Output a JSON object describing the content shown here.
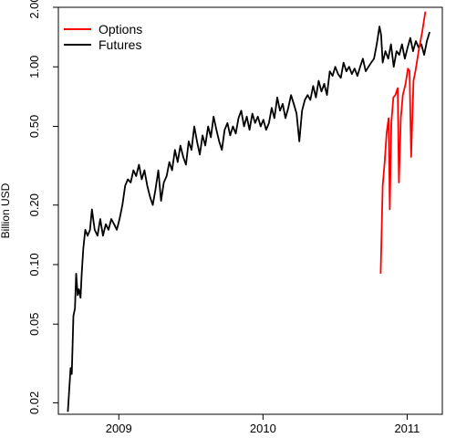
{
  "chart_data": {
    "type": "line",
    "title": "",
    "xlabel": "",
    "ylabel": "Billion USD",
    "x_scale": "time",
    "y_scale": "log",
    "xlim": [
      "2008-08-01",
      "2011-03-31"
    ],
    "ylim": [
      0.0175,
      2.0
    ],
    "x_ticks": [
      {
        "date": "2009-01-01",
        "label": "2009"
      },
      {
        "date": "2010-01-01",
        "label": "2010"
      },
      {
        "date": "2011-01-01",
        "label": "2011"
      }
    ],
    "y_ticks": [
      {
        "value": 0.02,
        "label": "0.02"
      },
      {
        "value": 0.05,
        "label": "0.05"
      },
      {
        "value": 0.1,
        "label": "0.10"
      },
      {
        "value": 0.2,
        "label": "0.20"
      },
      {
        "value": 0.5,
        "label": "0.50"
      },
      {
        "value": 1.0,
        "label": "1.00"
      },
      {
        "value": 2.0,
        "label": "2.00"
      }
    ],
    "legend": {
      "position": "top-left",
      "entries": [
        {
          "label": "Options",
          "color": "#ff0000"
        },
        {
          "label": "Futures",
          "color": "#000000"
        }
      ]
    },
    "series": [
      {
        "name": "Futures",
        "color": "#000000",
        "points": [
          [
            "2008-08-25",
            0.018
          ],
          [
            "2008-09-01",
            0.03
          ],
          [
            "2008-09-04",
            0.028
          ],
          [
            "2008-09-08",
            0.055
          ],
          [
            "2008-09-12",
            0.06
          ],
          [
            "2008-09-15",
            0.09
          ],
          [
            "2008-09-19",
            0.07
          ],
          [
            "2008-09-22",
            0.075
          ],
          [
            "2008-09-26",
            0.068
          ],
          [
            "2008-09-29",
            0.09
          ],
          [
            "2008-10-03",
            0.12
          ],
          [
            "2008-10-08",
            0.15
          ],
          [
            "2008-10-14",
            0.14
          ],
          [
            "2008-10-20",
            0.15
          ],
          [
            "2008-10-25",
            0.19
          ],
          [
            "2008-11-01",
            0.15
          ],
          [
            "2008-11-08",
            0.14
          ],
          [
            "2008-11-15",
            0.17
          ],
          [
            "2008-11-22",
            0.14
          ],
          [
            "2008-11-29",
            0.16
          ],
          [
            "2008-12-06",
            0.15
          ],
          [
            "2008-12-13",
            0.17
          ],
          [
            "2008-12-20",
            0.16
          ],
          [
            "2008-12-27",
            0.15
          ],
          [
            "2009-01-03",
            0.17
          ],
          [
            "2009-01-10",
            0.2
          ],
          [
            "2009-01-17",
            0.25
          ],
          [
            "2009-01-24",
            0.27
          ],
          [
            "2009-01-31",
            0.26
          ],
          [
            "2009-02-07",
            0.3
          ],
          [
            "2009-02-14",
            0.28
          ],
          [
            "2009-02-21",
            0.32
          ],
          [
            "2009-02-28",
            0.27
          ],
          [
            "2009-03-07",
            0.3
          ],
          [
            "2009-03-14",
            0.25
          ],
          [
            "2009-03-21",
            0.22
          ],
          [
            "2009-03-28",
            0.2
          ],
          [
            "2009-04-04",
            0.24
          ],
          [
            "2009-04-11",
            0.3
          ],
          [
            "2009-04-18",
            0.21
          ],
          [
            "2009-04-25",
            0.26
          ],
          [
            "2009-05-02",
            0.28
          ],
          [
            "2009-05-09",
            0.33
          ],
          [
            "2009-05-16",
            0.3
          ],
          [
            "2009-05-23",
            0.38
          ],
          [
            "2009-05-30",
            0.33
          ],
          [
            "2009-06-06",
            0.4
          ],
          [
            "2009-06-13",
            0.35
          ],
          [
            "2009-06-20",
            0.32
          ],
          [
            "2009-06-27",
            0.42
          ],
          [
            "2009-07-04",
            0.38
          ],
          [
            "2009-07-11",
            0.5
          ],
          [
            "2009-07-18",
            0.42
          ],
          [
            "2009-07-25",
            0.36
          ],
          [
            "2009-08-01",
            0.45
          ],
          [
            "2009-08-08",
            0.4
          ],
          [
            "2009-08-15",
            0.5
          ],
          [
            "2009-08-22",
            0.44
          ],
          [
            "2009-08-29",
            0.56
          ],
          [
            "2009-09-05",
            0.48
          ],
          [
            "2009-09-12",
            0.42
          ],
          [
            "2009-09-19",
            0.38
          ],
          [
            "2009-09-26",
            0.48
          ],
          [
            "2009-10-03",
            0.52
          ],
          [
            "2009-10-10",
            0.45
          ],
          [
            "2009-10-17",
            0.5
          ],
          [
            "2009-10-24",
            0.46
          ],
          [
            "2009-10-31",
            0.55
          ],
          [
            "2009-11-07",
            0.6
          ],
          [
            "2009-11-14",
            0.5
          ],
          [
            "2009-11-21",
            0.56
          ],
          [
            "2009-11-28",
            0.48
          ],
          [
            "2009-12-05",
            0.58
          ],
          [
            "2009-12-12",
            0.52
          ],
          [
            "2009-12-19",
            0.56
          ],
          [
            "2009-12-26",
            0.5
          ],
          [
            "2010-01-02",
            0.54
          ],
          [
            "2010-01-09",
            0.48
          ],
          [
            "2010-01-16",
            0.52
          ],
          [
            "2010-01-23",
            0.62
          ],
          [
            "2010-01-30",
            0.55
          ],
          [
            "2010-02-06",
            0.7
          ],
          [
            "2010-02-13",
            0.6
          ],
          [
            "2010-02-20",
            0.65
          ],
          [
            "2010-02-27",
            0.55
          ],
          [
            "2010-03-06",
            0.62
          ],
          [
            "2010-03-13",
            0.72
          ],
          [
            "2010-03-20",
            0.65
          ],
          [
            "2010-03-27",
            0.58
          ],
          [
            "2010-04-03",
            0.42
          ],
          [
            "2010-04-10",
            0.6
          ],
          [
            "2010-04-17",
            0.68
          ],
          [
            "2010-04-24",
            0.72
          ],
          [
            "2010-05-01",
            0.68
          ],
          [
            "2010-05-08",
            0.8
          ],
          [
            "2010-05-15",
            0.7
          ],
          [
            "2010-05-22",
            0.85
          ],
          [
            "2010-05-29",
            0.75
          ],
          [
            "2010-06-05",
            0.82
          ],
          [
            "2010-06-12",
            0.72
          ],
          [
            "2010-06-19",
            0.95
          ],
          [
            "2010-06-26",
            0.9
          ],
          [
            "2010-07-03",
            1.0
          ],
          [
            "2010-07-10",
            0.92
          ],
          [
            "2010-07-17",
            0.88
          ],
          [
            "2010-07-24",
            1.05
          ],
          [
            "2010-07-31",
            0.95
          ],
          [
            "2010-08-07",
            1.0
          ],
          [
            "2010-08-14",
            0.92
          ],
          [
            "2010-08-21",
            0.98
          ],
          [
            "2010-08-28",
            0.9
          ],
          [
            "2010-09-04",
            1.0
          ],
          [
            "2010-09-11",
            1.1
          ],
          [
            "2010-09-18",
            0.95
          ],
          [
            "2010-09-25",
            1.0
          ],
          [
            "2010-10-02",
            1.05
          ],
          [
            "2010-10-09",
            1.1
          ],
          [
            "2010-10-16",
            1.3
          ],
          [
            "2010-10-23",
            1.6
          ],
          [
            "2010-10-27",
            1.45
          ],
          [
            "2010-10-31",
            1.05
          ],
          [
            "2010-11-07",
            1.2
          ],
          [
            "2010-11-14",
            1.1
          ],
          [
            "2010-11-21",
            1.3
          ],
          [
            "2010-11-28",
            1.0
          ],
          [
            "2010-12-05",
            1.2
          ],
          [
            "2010-12-12",
            1.15
          ],
          [
            "2010-12-19",
            1.3
          ],
          [
            "2010-12-26",
            1.1
          ],
          [
            "2011-01-02",
            1.25
          ],
          [
            "2011-01-09",
            1.4
          ],
          [
            "2011-01-16",
            1.2
          ],
          [
            "2011-01-23",
            1.35
          ],
          [
            "2011-01-30",
            1.25
          ],
          [
            "2011-02-06",
            1.3
          ],
          [
            "2011-02-13",
            1.15
          ],
          [
            "2011-02-20",
            1.35
          ],
          [
            "2011-02-27",
            1.5
          ]
        ]
      },
      {
        "name": "Options",
        "color": "#ff0000",
        "points": [
          [
            "2010-10-26",
            0.09
          ],
          [
            "2010-10-31",
            0.25
          ],
          [
            "2010-11-05",
            0.33
          ],
          [
            "2010-11-10",
            0.46
          ],
          [
            "2010-11-15",
            0.55
          ],
          [
            "2010-11-18",
            0.19
          ],
          [
            "2010-11-22",
            0.52
          ],
          [
            "2010-11-27",
            0.7
          ],
          [
            "2010-12-02",
            0.72
          ],
          [
            "2010-12-08",
            0.78
          ],
          [
            "2010-12-11",
            0.26
          ],
          [
            "2010-12-16",
            0.55
          ],
          [
            "2010-12-21",
            0.72
          ],
          [
            "2010-12-28",
            0.82
          ],
          [
            "2011-01-03",
            0.98
          ],
          [
            "2011-01-07",
            0.95
          ],
          [
            "2011-01-11",
            0.35
          ],
          [
            "2011-01-17",
            0.85
          ],
          [
            "2011-01-22",
            0.95
          ],
          [
            "2011-01-30",
            1.2
          ],
          [
            "2011-02-08",
            1.5
          ],
          [
            "2011-02-16",
            1.9
          ]
        ]
      }
    ]
  }
}
